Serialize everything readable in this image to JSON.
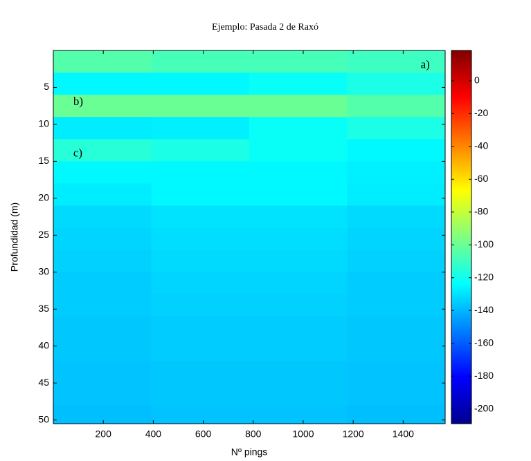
{
  "chart_data": {
    "type": "heatmap",
    "title": "Ejemplo: Pasada 2 de Raxó",
    "xlabel": "Nº pings",
    "ylabel": "Profundidad (m)",
    "colormap": "jet",
    "xlim": [
      0,
      1568
    ],
    "xticks": [
      200,
      400,
      600,
      800,
      1000,
      1200,
      1400
    ],
    "ylim": [
      0,
      50.5
    ],
    "yticks": [
      5,
      10,
      15,
      20,
      25,
      30,
      35,
      40,
      45,
      50
    ],
    "y_reversed": true,
    "clim": [
      -209,
      18.5
    ],
    "cticks": [
      0,
      -20,
      -40,
      -60,
      -80,
      -100,
      -120,
      -140,
      -160,
      -180,
      -200
    ],
    "x_edges": [
      0,
      392,
      784,
      1176,
      1568
    ],
    "y_edges": [
      0,
      3,
      6,
      9,
      12,
      15,
      18,
      21,
      24,
      27,
      30,
      33,
      36,
      39,
      42,
      45,
      48,
      50.5
    ],
    "z": [
      [
        -105,
        -108,
        -108,
        -110
      ],
      [
        -125,
        -125,
        -122,
        -118
      ],
      [
        -100,
        -100,
        -100,
        -105
      ],
      [
        -128,
        -127,
        -122,
        -118
      ],
      [
        -115,
        -118,
        -122,
        -125
      ],
      [
        -125,
        -125,
        -125,
        -127
      ],
      [
        -128,
        -125,
        -125,
        -128
      ],
      [
        -132,
        -130,
        -130,
        -132
      ],
      [
        -133,
        -131,
        -131,
        -133
      ],
      [
        -134,
        -132,
        -132,
        -134
      ],
      [
        -135,
        -133,
        -133,
        -135
      ],
      [
        -135,
        -134,
        -134,
        -135
      ],
      [
        -136,
        -135,
        -135,
        -136
      ],
      [
        -136,
        -135,
        -135,
        -136
      ],
      [
        -137,
        -136,
        -136,
        -137
      ],
      [
        -137,
        -136,
        -136,
        -137
      ],
      [
        -138,
        -137,
        -137,
        -138
      ]
    ],
    "annotations": [
      {
        "text": "a)",
        "x": 1470,
        "y": 2
      },
      {
        "text": "b)",
        "x": 80,
        "y": 7
      },
      {
        "text": "c)",
        "x": 80,
        "y": 14
      }
    ]
  }
}
